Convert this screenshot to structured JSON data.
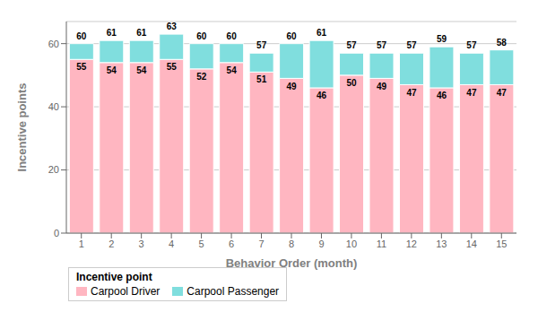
{
  "chart_data": {
    "type": "bar",
    "stacked": true,
    "xlabel": "Behavior Order (month)",
    "ylabel": "Incentive points",
    "categories": [
      "1",
      "2",
      "3",
      "4",
      "5",
      "6",
      "7",
      "8",
      "9",
      "10",
      "11",
      "12",
      "13",
      "14",
      "15"
    ],
    "series": [
      {
        "name": "Carpool Driver",
        "color": "#FFB6C1",
        "data_labels": true,
        "values": [
          55,
          54,
          54,
          55,
          52,
          54,
          51,
          49,
          46,
          50,
          49,
          47,
          46,
          47,
          47
        ]
      },
      {
        "name": "Carpool Passenger",
        "color": "#80DEDE",
        "values": [
          5,
          7,
          7,
          8,
          8,
          6,
          6,
          11,
          15,
          7,
          8,
          10,
          13,
          10,
          11
        ]
      }
    ],
    "totals": [
      60,
      61,
      61,
      63,
      60,
      60,
      57,
      60,
      61,
      57,
      57,
      57,
      59,
      57,
      58
    ],
    "legend_title": "Incentive point",
    "legend": "lower left",
    "ylim": [
      0,
      67
    ],
    "yticks": [
      0,
      20,
      40,
      60
    ],
    "grid": true
  }
}
